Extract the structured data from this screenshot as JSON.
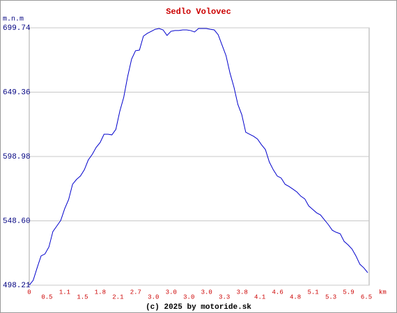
{
  "chart_data": {
    "type": "line",
    "title": "Sedlo Volovec",
    "ylabel": "m.n.m",
    "xunit": "km",
    "footer": "(c) 2025 by motoride.sk",
    "color": "#0000cc",
    "grid": true,
    "ylim": [
      498.21,
      699.74
    ],
    "yticks": [
      498.21,
      {
        "value": 548.6,
        "label": "548.60"
      },
      598.98,
      649.36,
      699.74
    ],
    "xtick_labels": [
      "0",
      "0.5",
      "1.1",
      "1.5",
      "1.8",
      "2.1",
      "2.7",
      "3.0",
      "3.0",
      "3.0",
      "3.0",
      "3.3",
      "3.8",
      "4.1",
      "4.6",
      "4.8",
      "5.1",
      "5.3",
      "5.9",
      "6.5"
    ],
    "values": [
      498.2,
      502.0,
      511.8,
      521.1,
      522.7,
      528.2,
      540.2,
      544.5,
      548.9,
      558.1,
      565.2,
      577.2,
      581.0,
      583.7,
      588.6,
      596.3,
      600.6,
      606.1,
      609.9,
      616.4,
      616.4,
      615.9,
      620.2,
      634.4,
      645.3,
      661.6,
      675.2,
      681.8,
      682.3,
      693.2,
      695.4,
      697.0,
      698.6,
      699.2,
      698.1,
      693.8,
      697.0,
      697.6,
      697.6,
      698.1,
      698.1,
      697.6,
      696.5,
      699.2,
      699.2,
      699.2,
      698.6,
      698.1,
      694.3,
      686.1,
      677.9,
      664.3,
      653.4,
      639.8,
      631.7,
      618.0,
      616.4,
      614.8,
      612.6,
      608.2,
      604.4,
      594.6,
      588.6,
      583.7,
      582.1,
      577.2,
      575.5,
      573.4,
      571.2,
      567.9,
      565.8,
      560.3,
      557.6,
      554.9,
      553.2,
      549.4,
      545.6,
      541.2,
      539.6,
      538.5,
      532.5,
      529.8,
      526.5,
      521.1,
      514.6,
      511.8,
      508.0
    ]
  }
}
